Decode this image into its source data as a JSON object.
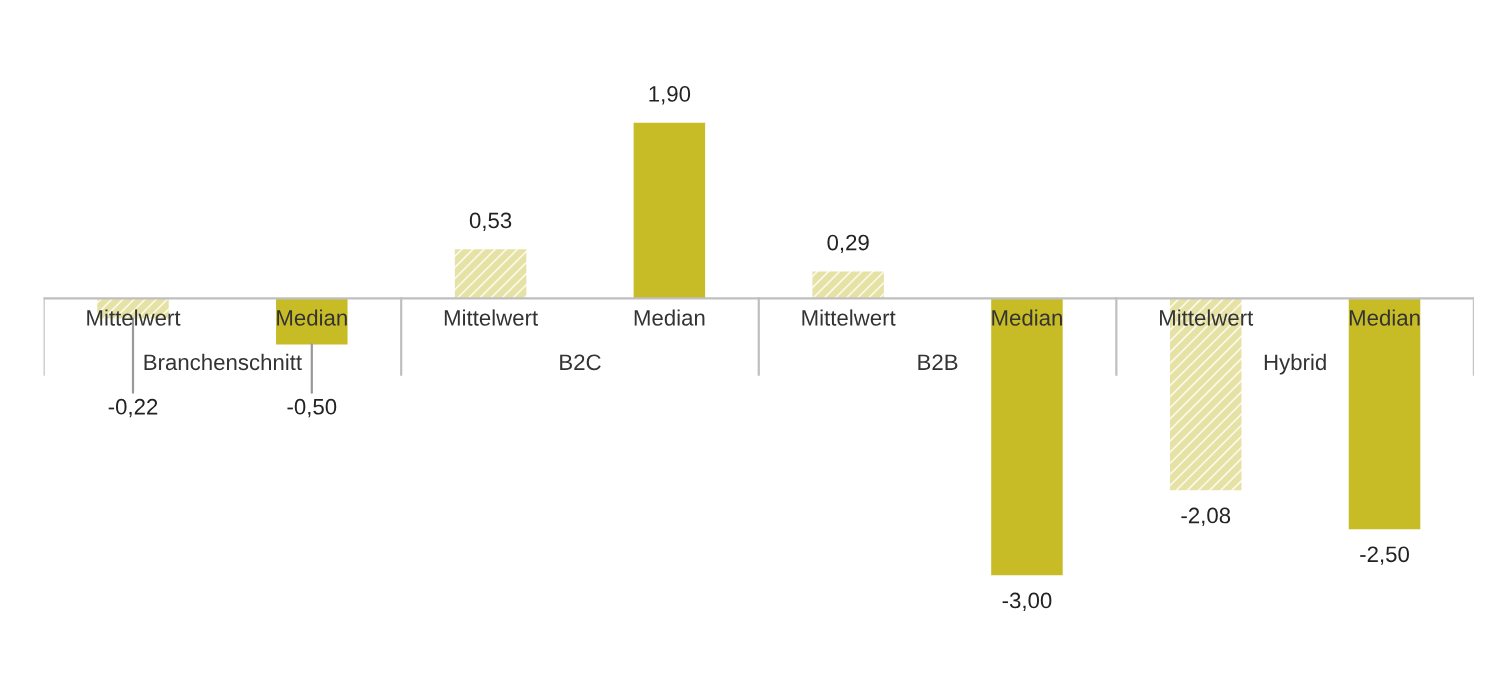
{
  "chart_data": {
    "type": "bar",
    "categories": [
      "Branchenschnitt",
      "B2C",
      "B2B",
      "Hybrid"
    ],
    "series": [
      {
        "name": "Mittelwert",
        "color": "#e6e2a6",
        "values": [
          -0.22,
          0.53,
          0.29,
          -2.08
        ],
        "value_labels": [
          "-0,22",
          "0,53",
          "0,29",
          "-2,08"
        ]
      },
      {
        "name": "Median",
        "color": "#c8bc26",
        "values": [
          -0.5,
          1.9,
          -3.0,
          -2.5
        ],
        "value_labels": [
          "-0,50",
          "1,90",
          "-3,00",
          "-2,50"
        ]
      }
    ],
    "legend": false
  }
}
